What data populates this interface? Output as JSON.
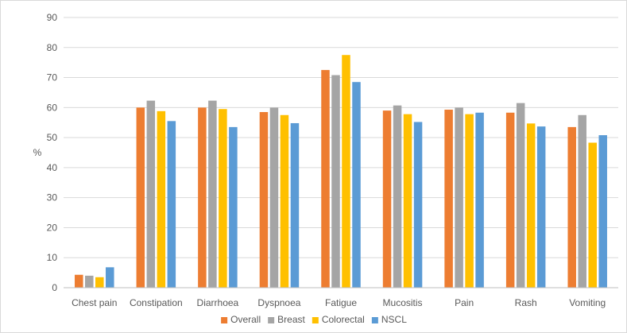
{
  "chart_data": {
    "type": "bar",
    "title": "",
    "xlabel": "",
    "ylabel": "%",
    "ylim": [
      0,
      90
    ],
    "yticks": [
      "0",
      "10",
      "20",
      "30",
      "40",
      "50",
      "60",
      "70",
      "80",
      "90"
    ],
    "grid": true,
    "legend_position": "bottom",
    "categories": [
      "Chest pain",
      "Constipation",
      "Diarrhoea",
      "Dyspnoea",
      "Fatigue",
      "Mucositis",
      "Pain",
      "Rash",
      "Vomiting"
    ],
    "series": [
      {
        "name": "Overall",
        "color": "#ed7d31",
        "values": [
          4.3,
          60.0,
          60.0,
          58.5,
          72.5,
          59.0,
          59.3,
          58.3,
          53.5
        ]
      },
      {
        "name": "Breast",
        "color": "#a5a5a5",
        "values": [
          4.0,
          62.3,
          62.3,
          60.0,
          70.8,
          60.7,
          60.0,
          61.5,
          57.5
        ]
      },
      {
        "name": "Colorectal",
        "color": "#ffc000",
        "values": [
          3.5,
          58.8,
          59.5,
          57.5,
          77.5,
          57.8,
          57.8,
          54.7,
          48.3
        ]
      },
      {
        "name": "NSCL",
        "color": "#5b9bd5",
        "values": [
          6.8,
          55.5,
          53.5,
          54.8,
          68.5,
          55.2,
          58.3,
          53.7,
          50.8
        ]
      }
    ]
  }
}
